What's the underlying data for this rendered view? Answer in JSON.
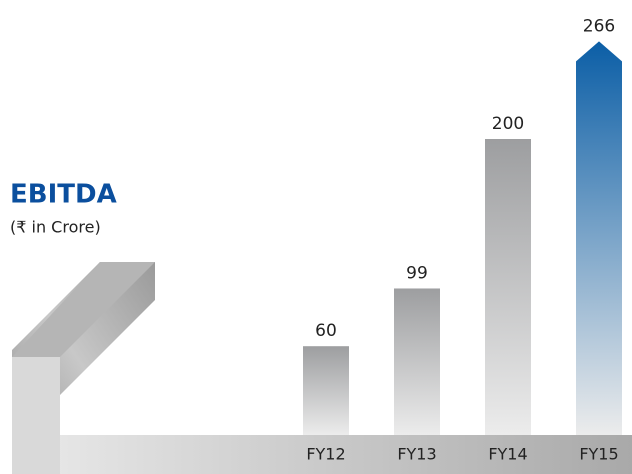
{
  "chart_data": {
    "type": "bar",
    "title": "EBITDA",
    "subtitle": "(₹ in Crore)",
    "categories": [
      "FY12",
      "FY13",
      "FY14",
      "FY15"
    ],
    "values": [
      60,
      99,
      200,
      266
    ],
    "colors": [
      "#9d9ea0",
      "#9d9ea0",
      "#9d9ea0",
      "#0b5ea6"
    ]
  }
}
